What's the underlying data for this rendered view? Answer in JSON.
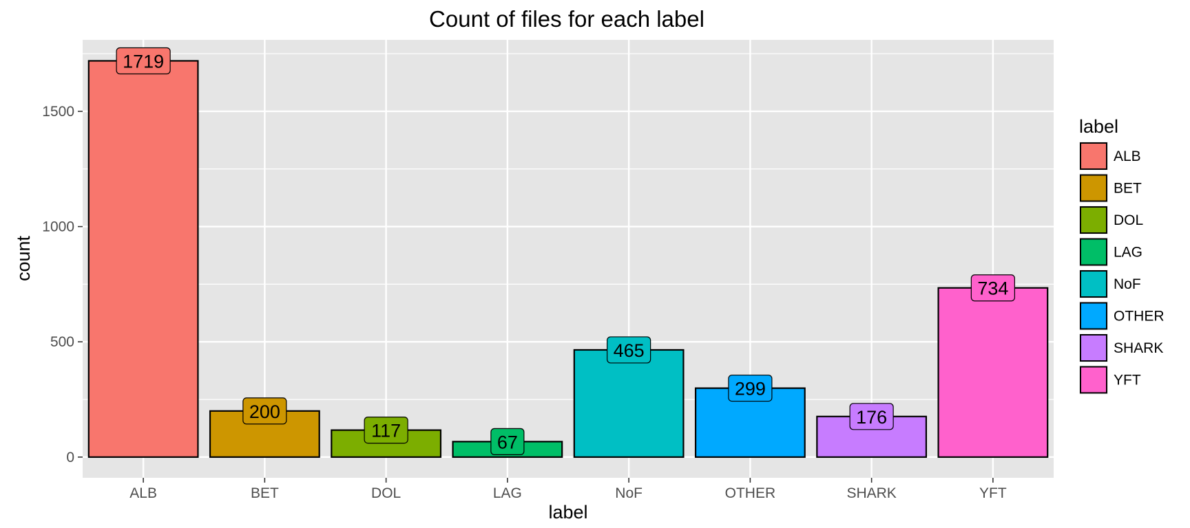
{
  "chart_data": {
    "type": "bar",
    "title": "Count of files for each label",
    "xlabel": "label",
    "ylabel": "count",
    "categories": [
      "ALB",
      "BET",
      "DOL",
      "LAG",
      "NoF",
      "OTHER",
      "SHARK",
      "YFT"
    ],
    "values": [
      1719,
      200,
      117,
      67,
      465,
      299,
      176,
      734
    ],
    "data_labels": [
      "1719",
      "200",
      "117",
      "67",
      "465",
      "299",
      "176",
      "734"
    ],
    "colors": [
      "#F8766D",
      "#CD9600",
      "#7CAE00",
      "#00BE67",
      "#00BFC4",
      "#00A9FF",
      "#C77CFF",
      "#FF61CC"
    ],
    "ylim": [
      -90,
      1810
    ],
    "yticks": [
      0,
      500,
      1000,
      1500
    ],
    "ytick_labels": [
      "0",
      "500",
      "1000",
      "1500"
    ],
    "grid": true,
    "panel_background": "#E5E5E5",
    "grid_color": "#FFFFFF",
    "legend": {
      "title": "label",
      "position": "right",
      "entries": [
        "ALB",
        "BET",
        "DOL",
        "LAG",
        "NoF",
        "OTHER",
        "SHARK",
        "YFT"
      ]
    }
  }
}
